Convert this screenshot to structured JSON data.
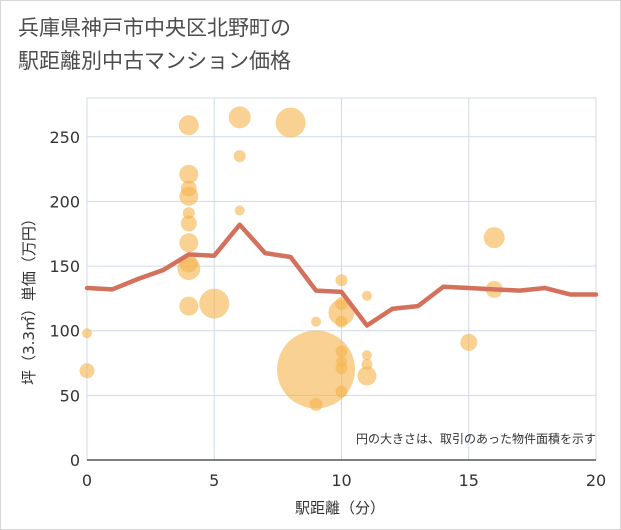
{
  "title": "兵庫県神戸市中央区北野町の\n駅距離別中古マンション価格",
  "chart_data": {
    "type": "scatter",
    "title": "兵庫県神戸市中央区北野町の駅距離別中古マンション価格",
    "xlabel": "駅距離（分）",
    "ylabel": "坪（3.3㎡）単価（万円）",
    "xlim": [
      0,
      20
    ],
    "ylim": [
      0,
      280
    ],
    "xticks": [
      0,
      5,
      10,
      15,
      20
    ],
    "yticks": [
      0,
      50,
      100,
      150,
      200,
      250
    ],
    "grid": true,
    "annotation": "円の大きさは、取引のあった物件面積を示す",
    "colors": {
      "bubble": "#f5b54f",
      "line": "#d4715c",
      "grid": "#cfdbe5"
    },
    "series": [
      {
        "type": "bubble",
        "points": [
          {
            "x": 0,
            "y": 98,
            "size": 10
          },
          {
            "x": 0,
            "y": 69,
            "size": 15
          },
          {
            "x": 4,
            "y": 259,
            "size": 20
          },
          {
            "x": 4,
            "y": 221,
            "size": 19
          },
          {
            "x": 4,
            "y": 210,
            "size": 16
          },
          {
            "x": 4,
            "y": 204,
            "size": 19
          },
          {
            "x": 4,
            "y": 191,
            "size": 12
          },
          {
            "x": 4,
            "y": 183,
            "size": 16
          },
          {
            "x": 4,
            "y": 168,
            "size": 19
          },
          {
            "x": 4,
            "y": 152,
            "size": 18
          },
          {
            "x": 4,
            "y": 148,
            "size": 23
          },
          {
            "x": 4,
            "y": 119,
            "size": 19
          },
          {
            "x": 5,
            "y": 121,
            "size": 30
          },
          {
            "x": 6,
            "y": 265,
            "size": 22
          },
          {
            "x": 6,
            "y": 235,
            "size": 12
          },
          {
            "x": 6,
            "y": 193,
            "size": 10
          },
          {
            "x": 8,
            "y": 261,
            "size": 30
          },
          {
            "x": 9,
            "y": 107,
            "size": 10
          },
          {
            "x": 9,
            "y": 70,
            "size": 78
          },
          {
            "x": 9,
            "y": 43,
            "size": 13
          },
          {
            "x": 10,
            "y": 139,
            "size": 12
          },
          {
            "x": 10,
            "y": 121,
            "size": 13
          },
          {
            "x": 10,
            "y": 114,
            "size": 26
          },
          {
            "x": 10,
            "y": 107,
            "size": 12
          },
          {
            "x": 10,
            "y": 84,
            "size": 12
          },
          {
            "x": 10,
            "y": 76,
            "size": 11
          },
          {
            "x": 10,
            "y": 71,
            "size": 12
          },
          {
            "x": 10,
            "y": 53,
            "size": 12
          },
          {
            "x": 11,
            "y": 127,
            "size": 10
          },
          {
            "x": 11,
            "y": 81,
            "size": 10
          },
          {
            "x": 11,
            "y": 74,
            "size": 11
          },
          {
            "x": 11,
            "y": 65,
            "size": 19
          },
          {
            "x": 15,
            "y": 91,
            "size": 17
          },
          {
            "x": 16,
            "y": 172,
            "size": 21
          },
          {
            "x": 16,
            "y": 132,
            "size": 17
          }
        ]
      },
      {
        "type": "line",
        "x": [
          0,
          1,
          2,
          3,
          4,
          5,
          6,
          7,
          8,
          9,
          10,
          11,
          12,
          13,
          14,
          15,
          16,
          17,
          18,
          19,
          20
        ],
        "y": [
          133,
          132,
          140,
          147,
          159,
          158,
          182,
          160,
          157,
          131,
          130,
          104,
          117,
          119,
          134,
          133,
          132,
          131,
          133,
          128,
          128
        ]
      }
    ]
  }
}
